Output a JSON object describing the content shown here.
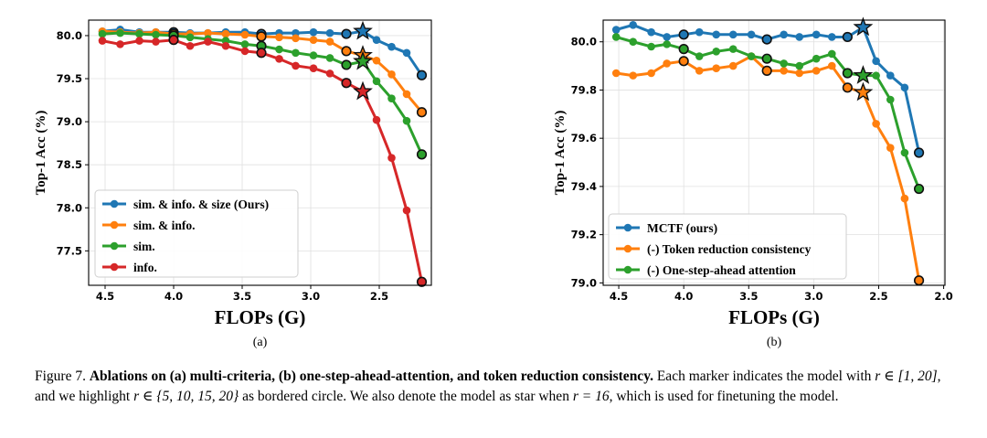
{
  "colors": {
    "blue": "#1f77b4",
    "orange": "#ff7f0e",
    "green": "#2ca02c",
    "red": "#d62728",
    "grid": "#e0e0e0"
  },
  "chart_data": [
    {
      "type": "line",
      "panel_label": "(a)",
      "xlabel": "FLOPs (G)",
      "ylabel": "Top-1 Acc (%)",
      "xlim": [
        4.62,
        2.12
      ],
      "ylim": [
        77.1,
        80.18
      ],
      "x_ticks": [
        4.5,
        4.0,
        3.5,
        3.0,
        2.5
      ],
      "x_tick_labels": [
        "4.5",
        "4.0",
        "3.5",
        "3.0",
        "2.5"
      ],
      "y_ticks": [
        77.5,
        78.0,
        78.5,
        79.0,
        79.5,
        80.0
      ],
      "y_tick_labels": [
        "77.5",
        "78.0",
        "78.5",
        "79.0",
        "79.5",
        "80.0"
      ],
      "grid": true,
      "legend_position": "lower-left",
      "series": [
        {
          "name": "sim. & info. & size (Ours)",
          "color": "blue",
          "x": [
            4.52,
            4.39,
            4.25,
            4.13,
            4.0,
            3.88,
            3.75,
            3.62,
            3.48,
            3.36,
            3.23,
            3.11,
            2.98,
            2.86,
            2.74,
            2.62,
            2.52,
            2.41,
            2.3,
            2.19
          ],
          "y": [
            80.05,
            80.07,
            80.04,
            80.04,
            80.04,
            80.03,
            80.03,
            80.04,
            80.04,
            80.02,
            80.03,
            80.03,
            80.04,
            80.03,
            80.02,
            80.05,
            79.95,
            79.87,
            79.8,
            79.54
          ],
          "bordered_idx": [
            4,
            9,
            14,
            19
          ],
          "star_idx": 15
        },
        {
          "name": "sim. & info.",
          "color": "orange",
          "x": [
            4.52,
            4.39,
            4.25,
            4.13,
            4.0,
            3.88,
            3.75,
            3.62,
            3.48,
            3.36,
            3.23,
            3.11,
            2.98,
            2.86,
            2.74,
            2.62,
            2.52,
            2.41,
            2.3,
            2.19
          ],
          "y": [
            80.05,
            80.04,
            80.03,
            80.04,
            80.02,
            80.02,
            80.03,
            80.02,
            80.01,
            79.99,
            79.98,
            79.97,
            79.95,
            79.93,
            79.82,
            79.77,
            79.71,
            79.55,
            79.32,
            79.11
          ],
          "bordered_idx": [
            4,
            9,
            14,
            19
          ],
          "star_idx": 15
        },
        {
          "name": "sim.",
          "color": "green",
          "x": [
            4.52,
            4.39,
            4.25,
            4.13,
            4.0,
            3.88,
            3.75,
            3.62,
            3.48,
            3.36,
            3.23,
            3.11,
            2.98,
            2.86,
            2.74,
            2.62,
            2.52,
            2.41,
            2.3,
            2.19
          ],
          "y": [
            80.02,
            80.03,
            80.02,
            80.01,
            80.0,
            79.98,
            79.96,
            79.94,
            79.9,
            79.88,
            79.84,
            79.8,
            79.77,
            79.74,
            79.66,
            79.7,
            79.47,
            79.27,
            79.01,
            78.62
          ],
          "bordered_idx": [
            4,
            9,
            14,
            19
          ],
          "star_idx": 15
        },
        {
          "name": "info.",
          "color": "red",
          "x": [
            4.52,
            4.39,
            4.25,
            4.13,
            4.0,
            3.88,
            3.75,
            3.62,
            3.48,
            3.36,
            3.23,
            3.11,
            2.98,
            2.86,
            2.74,
            2.62,
            2.52,
            2.41,
            2.3,
            2.19
          ],
          "y": [
            79.94,
            79.9,
            79.94,
            79.93,
            79.95,
            79.88,
            79.93,
            79.88,
            79.82,
            79.8,
            79.73,
            79.65,
            79.62,
            79.56,
            79.45,
            79.35,
            79.02,
            78.58,
            77.97,
            77.14
          ],
          "bordered_idx": [
            4,
            9,
            14,
            19
          ],
          "star_idx": 15
        }
      ]
    },
    {
      "type": "line",
      "panel_label": "(b)",
      "xlabel": "FLOPs (G)",
      "ylabel": "Top-1 Acc (%)",
      "xlim": [
        4.62,
        1.99
      ],
      "ylim": [
        78.99,
        80.09
      ],
      "x_ticks": [
        4.5,
        4.0,
        3.5,
        3.0,
        2.5,
        2.0
      ],
      "x_tick_labels": [
        "4.5",
        "4.0",
        "3.5",
        "3.0",
        "2.5",
        "2.0"
      ],
      "y_ticks": [
        79.0,
        79.2,
        79.4,
        79.6,
        79.8,
        80.0
      ],
      "y_tick_labels": [
        "79.0",
        "79.2",
        "79.4",
        "79.6",
        "79.8",
        "80.0"
      ],
      "grid": true,
      "legend_position": "lower-left",
      "series": [
        {
          "name": "MCTF (ours)",
          "color": "blue",
          "x": [
            4.52,
            4.39,
            4.25,
            4.13,
            4.0,
            3.88,
            3.75,
            3.62,
            3.48,
            3.36,
            3.23,
            3.11,
            2.98,
            2.86,
            2.74,
            2.62,
            2.52,
            2.41,
            2.3,
            2.19
          ],
          "y": [
            80.05,
            80.07,
            80.04,
            80.02,
            80.03,
            80.04,
            80.03,
            80.03,
            80.03,
            80.01,
            80.03,
            80.02,
            80.03,
            80.02,
            80.02,
            80.06,
            79.92,
            79.86,
            79.81,
            79.54
          ],
          "bordered_idx": [
            4,
            9,
            14,
            19
          ],
          "star_idx": 15
        },
        {
          "name": "(-) Token reduction consistency",
          "color": "orange",
          "x": [
            4.52,
            4.39,
            4.25,
            4.13,
            4.0,
            3.88,
            3.75,
            3.62,
            3.48,
            3.36,
            3.23,
            3.11,
            2.98,
            2.86,
            2.74,
            2.62,
            2.52,
            2.41,
            2.3,
            2.19
          ],
          "y": [
            79.87,
            79.86,
            79.87,
            79.91,
            79.92,
            79.88,
            79.89,
            79.9,
            79.94,
            79.88,
            79.88,
            79.87,
            79.88,
            79.9,
            79.81,
            79.79,
            79.66,
            79.56,
            79.35,
            79.01
          ],
          "bordered_idx": [
            4,
            9,
            14,
            19
          ],
          "star_idx": 15
        },
        {
          "name": "(-) One-step-ahead attention",
          "color": "green",
          "x": [
            4.52,
            4.39,
            4.25,
            4.13,
            4.0,
            3.88,
            3.75,
            3.62,
            3.48,
            3.36,
            3.23,
            3.11,
            2.98,
            2.86,
            2.74,
            2.62,
            2.52,
            2.41,
            2.3,
            2.19
          ],
          "y": [
            80.02,
            80.0,
            79.98,
            79.99,
            79.97,
            79.94,
            79.96,
            79.97,
            79.94,
            79.93,
            79.91,
            79.9,
            79.93,
            79.95,
            79.87,
            79.86,
            79.86,
            79.76,
            79.54,
            79.39
          ],
          "bordered_idx": [
            4,
            9,
            14,
            19
          ],
          "star_idx": 15
        }
      ]
    }
  ],
  "caption": {
    "figure_label": "Figure 7.",
    "title": "Ablations on (a) multi-criteria, (b) one-step-ahead-attention, and token reduction consistency.",
    "body_part1": " Each marker indicates the model with ",
    "math_r_range": "r ∈ [1, 20]",
    "body_part2": ", and we highlight ",
    "math_r_set": "r ∈ {5, 10, 15, 20}",
    "body_part3": " as bordered circle. We also denote the model as star when ",
    "math_r_star": "r = 16",
    "body_part4": ", which is used for finetuning the model."
  }
}
